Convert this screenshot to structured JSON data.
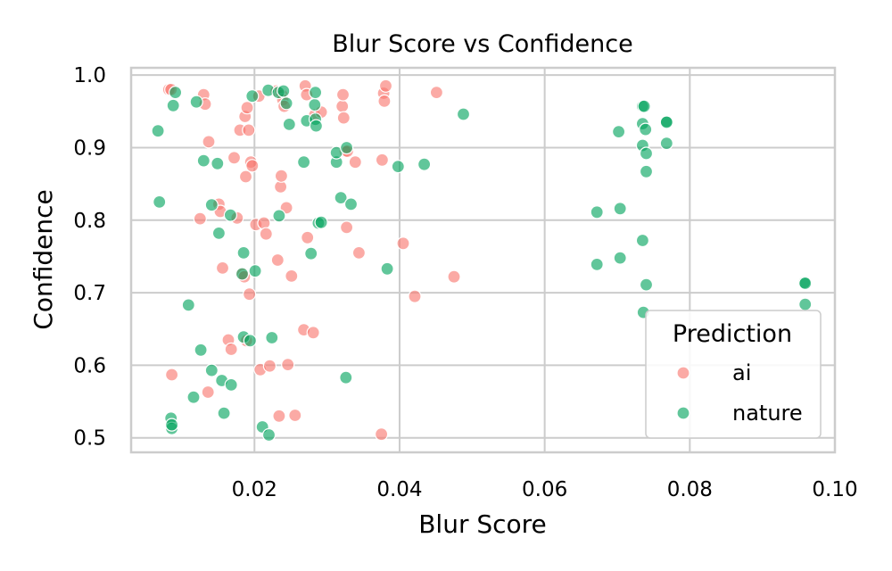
{
  "chart_data": {
    "type": "scatter",
    "title": "Blur Score vs Confidence",
    "xlabel": "Blur Score",
    "ylabel": "Confidence",
    "xlim": [
      0.003,
      0.1
    ],
    "ylim": [
      0.48,
      1.01
    ],
    "xticks": [
      "0.02",
      "0.04",
      "0.06",
      "0.08",
      "0.10"
    ],
    "xtick_values": [
      0.02,
      0.04,
      0.06,
      0.08,
      0.1
    ],
    "yticks": [
      "0.5",
      "0.6",
      "0.7",
      "0.8",
      "0.9",
      "1.0"
    ],
    "ytick_values": [
      0.5,
      0.6,
      0.7,
      0.8,
      0.9,
      1.0
    ],
    "grid": true,
    "legend": {
      "title": "Prediction",
      "position": "lower-right"
    },
    "series": [
      {
        "name": "ai",
        "color": "#f8766d",
        "points": [
          [
            0.0082,
            0.98
          ],
          [
            0.0085,
            0.98
          ],
          [
            0.0086,
            0.587
          ],
          [
            0.0125,
            0.802
          ],
          [
            0.013,
            0.973
          ],
          [
            0.0132,
            0.96
          ],
          [
            0.0136,
            0.563
          ],
          [
            0.0137,
            0.908
          ],
          [
            0.0151,
            0.822
          ],
          [
            0.0153,
            0.812
          ],
          [
            0.0156,
            0.734
          ],
          [
            0.0164,
            0.635
          ],
          [
            0.0168,
            0.622
          ],
          [
            0.0172,
            0.886
          ],
          [
            0.0176,
            0.803
          ],
          [
            0.018,
            0.924
          ],
          [
            0.0183,
            0.726
          ],
          [
            0.0186,
            0.722
          ],
          [
            0.0187,
            0.943
          ],
          [
            0.0188,
            0.86
          ],
          [
            0.0189,
            0.634
          ],
          [
            0.019,
            0.955
          ],
          [
            0.0192,
            0.924
          ],
          [
            0.0193,
            0.698
          ],
          [
            0.0195,
            0.88
          ],
          [
            0.0197,
            0.875
          ],
          [
            0.0202,
            0.794
          ],
          [
            0.0206,
            0.971
          ],
          [
            0.0208,
            0.594
          ],
          [
            0.0213,
            0.796
          ],
          [
            0.0216,
            0.781
          ],
          [
            0.0221,
            0.599
          ],
          [
            0.023,
            0.978
          ],
          [
            0.0232,
            0.745
          ],
          [
            0.0234,
            0.53
          ],
          [
            0.0236,
            0.846
          ],
          [
            0.0237,
            0.861
          ],
          [
            0.0238,
            0.972
          ],
          [
            0.0239,
            0.966
          ],
          [
            0.0241,
            0.957
          ],
          [
            0.0244,
            0.817
          ],
          [
            0.0246,
            0.601
          ],
          [
            0.0251,
            0.723
          ],
          [
            0.0256,
            0.531
          ],
          [
            0.0268,
            0.649
          ],
          [
            0.027,
            0.985
          ],
          [
            0.0272,
            0.973
          ],
          [
            0.0273,
            0.776
          ],
          [
            0.0281,
            0.645
          ],
          [
            0.0283,
            0.945
          ],
          [
            0.0292,
            0.949
          ],
          [
            0.0321,
            0.957
          ],
          [
            0.0322,
            0.973
          ],
          [
            0.0323,
            0.941
          ],
          [
            0.0325,
            0.895
          ],
          [
            0.0327,
            0.79
          ],
          [
            0.0328,
            0.895
          ],
          [
            0.0339,
            0.88
          ],
          [
            0.0344,
            0.755
          ],
          [
            0.0375,
            0.505
          ],
          [
            0.0376,
            0.883
          ],
          [
            0.0378,
            0.975
          ],
          [
            0.0379,
            0.964
          ],
          [
            0.0381,
            0.985
          ],
          [
            0.0405,
            0.768
          ],
          [
            0.0421,
            0.695
          ],
          [
            0.0451,
            0.976
          ],
          [
            0.0475,
            0.722
          ]
        ]
      },
      {
        "name": "nature",
        "color": "#00a35c",
        "points": [
          [
            0.0067,
            0.923
          ],
          [
            0.0069,
            0.825
          ],
          [
            0.0085,
            0.527
          ],
          [
            0.0086,
            0.513
          ],
          [
            0.0086,
            0.518
          ],
          [
            0.0088,
            0.958
          ],
          [
            0.0091,
            0.976
          ],
          [
            0.0109,
            0.683
          ],
          [
            0.0116,
            0.556
          ],
          [
            0.012,
            0.963
          ],
          [
            0.0126,
            0.621
          ],
          [
            0.013,
            0.882
          ],
          [
            0.0141,
            0.593
          ],
          [
            0.0141,
            0.821
          ],
          [
            0.0149,
            0.878
          ],
          [
            0.0151,
            0.782
          ],
          [
            0.0155,
            0.579
          ],
          [
            0.0158,
            0.534
          ],
          [
            0.0167,
            0.807
          ],
          [
            0.0168,
            0.573
          ],
          [
            0.0183,
            0.726
          ],
          [
            0.0185,
            0.755
          ],
          [
            0.0185,
            0.639
          ],
          [
            0.0194,
            0.634
          ],
          [
            0.0197,
            0.971
          ],
          [
            0.0201,
            0.73
          ],
          [
            0.0211,
            0.515
          ],
          [
            0.0219,
            0.979
          ],
          [
            0.022,
            0.504
          ],
          [
            0.0224,
            0.638
          ],
          [
            0.0233,
            0.976
          ],
          [
            0.0234,
            0.806
          ],
          [
            0.024,
            0.978
          ],
          [
            0.0244,
            0.961
          ],
          [
            0.0248,
            0.932
          ],
          [
            0.0268,
            0.88
          ],
          [
            0.0272,
            0.937
          ],
          [
            0.0278,
            0.754
          ],
          [
            0.0283,
            0.959
          ],
          [
            0.0284,
            0.939
          ],
          [
            0.0284,
            0.976
          ],
          [
            0.0285,
            0.93
          ],
          [
            0.0288,
            0.796
          ],
          [
            0.0292,
            0.797
          ],
          [
            0.0313,
            0.88
          ],
          [
            0.0313,
            0.893
          ],
          [
            0.0319,
            0.831
          ],
          [
            0.0326,
            0.583
          ],
          [
            0.0327,
            0.9
          ],
          [
            0.0333,
            0.822
          ],
          [
            0.0383,
            0.733
          ],
          [
            0.0398,
            0.874
          ],
          [
            0.0434,
            0.877
          ],
          [
            0.0488,
            0.946
          ],
          [
            0.0672,
            0.811
          ],
          [
            0.0672,
            0.739
          ],
          [
            0.0702,
            0.922
          ],
          [
            0.0704,
            0.816
          ],
          [
            0.0704,
            0.748
          ],
          [
            0.0735,
            0.957
          ],
          [
            0.0735,
            0.933
          ],
          [
            0.0735,
            0.903
          ],
          [
            0.0735,
            0.772
          ],
          [
            0.0736,
            0.673
          ],
          [
            0.0737,
            0.957
          ],
          [
            0.0739,
            0.925
          ],
          [
            0.074,
            0.892
          ],
          [
            0.074,
            0.867
          ],
          [
            0.074,
            0.711
          ],
          [
            0.0768,
            0.936
          ],
          [
            0.0768,
            0.935
          ],
          [
            0.0768,
            0.906
          ],
          [
            0.0958,
            0.714
          ],
          [
            0.0959,
            0.713
          ],
          [
            0.0959,
            0.684
          ]
        ]
      }
    ]
  }
}
